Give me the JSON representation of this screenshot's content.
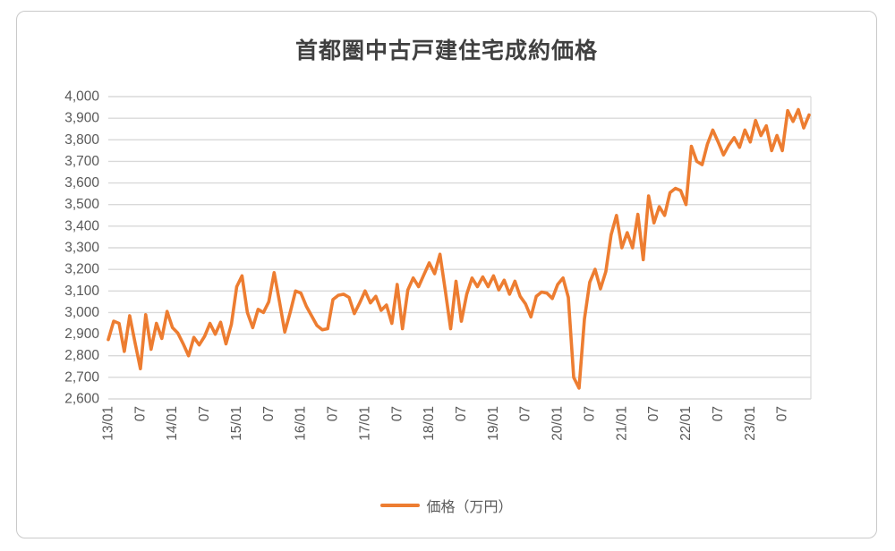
{
  "chart_title": "首都圏中古戸建住宅成約価格",
  "legend": {
    "label": "価格（万円）"
  },
  "chart_data": {
    "type": "line",
    "title": "首都圏中古戸建住宅成約価格",
    "x_start": "2013/01",
    "x_end": "2023/12",
    "x_frequency": "monthly",
    "x_tick_labels": [
      "13/01",
      "07",
      "14/01",
      "07",
      "15/01",
      "07",
      "16/01",
      "07",
      "17/01",
      "07",
      "18/01",
      "07",
      "19/01",
      "07",
      "20/01",
      "07",
      "21/01",
      "07",
      "22/01",
      "07",
      "23/01",
      "07"
    ],
    "x_tick_interval_months": 6,
    "y_ticks": [
      2600,
      2700,
      2800,
      2900,
      3000,
      3100,
      3200,
      3300,
      3400,
      3500,
      3600,
      3700,
      3800,
      3900,
      4000
    ],
    "ylim": [
      2600,
      4000
    ],
    "grid": "horizontal",
    "gridline_color": "#d9d9d9",
    "label_color": "#595959",
    "title_color": "#404040",
    "legend_position": "bottom",
    "series": [
      {
        "name": "価格（万円）",
        "color": "#ED7D31",
        "values": [
          2875,
          2960,
          2950,
          2820,
          2985,
          2860,
          2740,
          2990,
          2830,
          2950,
          2880,
          3005,
          2930,
          2905,
          2855,
          2800,
          2885,
          2850,
          2890,
          2950,
          2900,
          2955,
          2855,
          2945,
          3120,
          3170,
          3000,
          2930,
          3015,
          3000,
          3050,
          3185,
          3050,
          2910,
          3000,
          3100,
          3090,
          3030,
          2985,
          2940,
          2920,
          2925,
          3060,
          3080,
          3085,
          3070,
          2995,
          3045,
          3100,
          3045,
          3075,
          3010,
          3035,
          2950,
          3130,
          2925,
          3105,
          3160,
          3120,
          3175,
          3230,
          3180,
          3270,
          3100,
          2925,
          3145,
          2960,
          3085,
          3160,
          3120,
          3165,
          3120,
          3170,
          3105,
          3150,
          3085,
          3145,
          3075,
          3040,
          2980,
          3075,
          3095,
          3090,
          3065,
          3130,
          3160,
          3070,
          2700,
          2650,
          2970,
          3140,
          3200,
          3110,
          3190,
          3360,
          3450,
          3300,
          3370,
          3300,
          3455,
          3245,
          3540,
          3415,
          3490,
          3450,
          3555,
          3575,
          3565,
          3500,
          3770,
          3700,
          3685,
          3780,
          3845,
          3790,
          3730,
          3775,
          3810,
          3765,
          3845,
          3790,
          3890,
          3820,
          3865,
          3750,
          3820,
          3750,
          3935,
          3885,
          3940,
          3855,
          3915
        ]
      }
    ]
  }
}
